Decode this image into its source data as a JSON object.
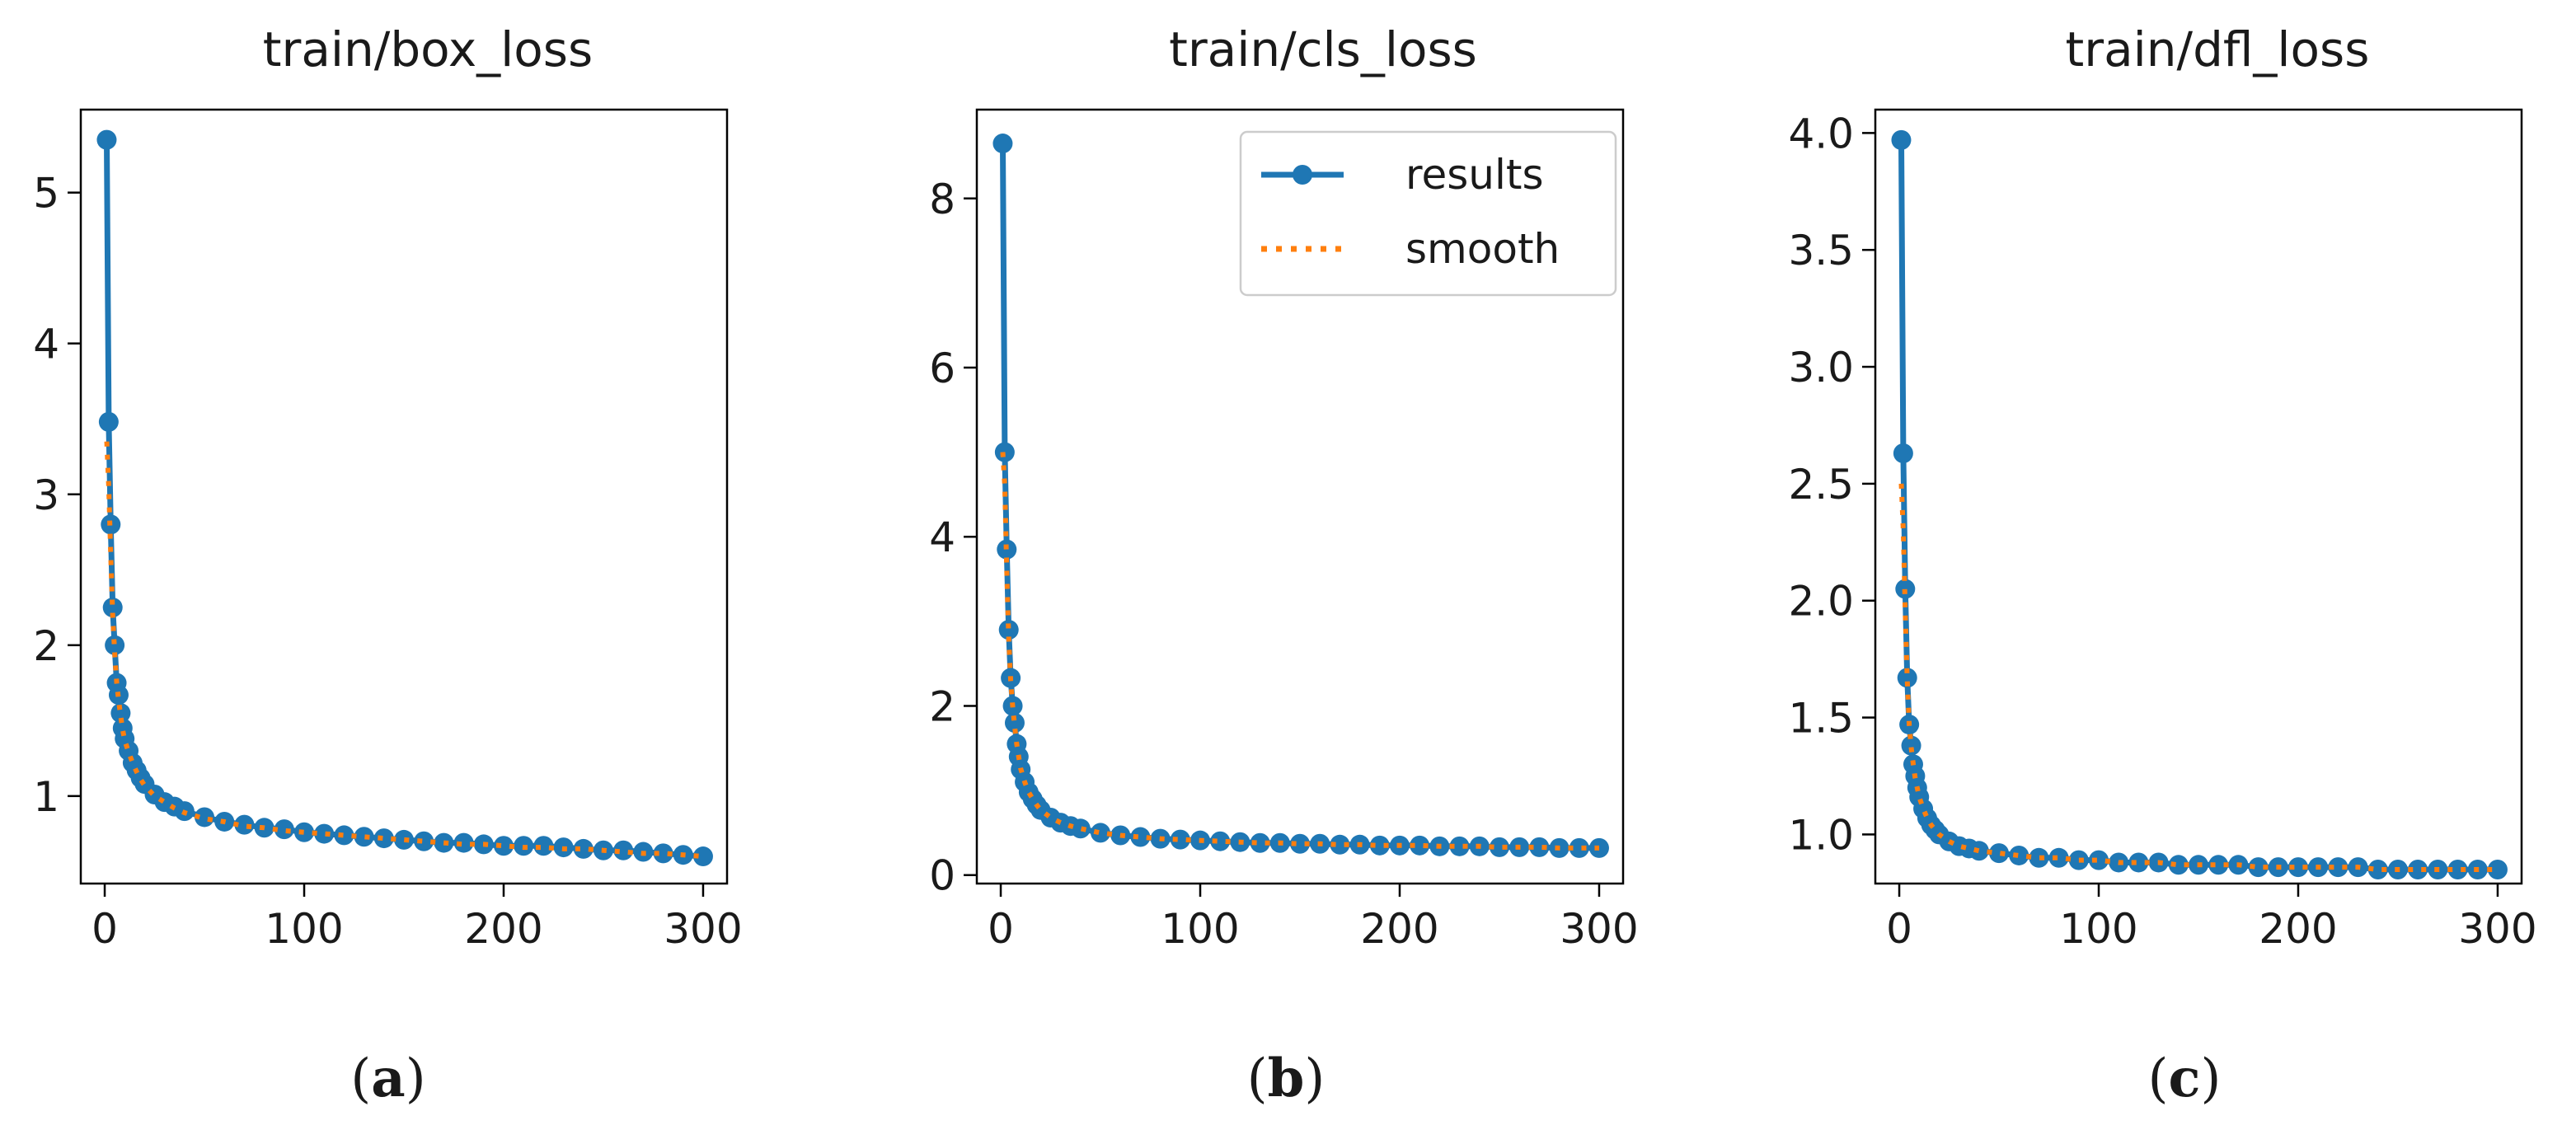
{
  "figure": {
    "captions": [
      "a",
      "b",
      "c"
    ]
  },
  "colors": {
    "results": "#1f77b4",
    "smooth": "#ff7f0e",
    "axis": "#000000",
    "background": "#ffffff"
  },
  "chart_data": [
    {
      "type": "line",
      "title": "train/box_loss",
      "xlabel": "",
      "ylabel": "",
      "xlim": [
        -12,
        312
      ],
      "ylim": [
        0.42,
        5.55
      ],
      "xticks": [
        0,
        100,
        200,
        300
      ],
      "yticks": [
        1,
        2,
        3,
        4,
        5
      ],
      "legend": null,
      "series": [
        {
          "name": "results",
          "style": "solid-marker",
          "x": [
            1,
            2,
            3,
            4,
            5,
            6,
            7,
            8,
            9,
            10,
            12,
            14,
            16,
            18,
            20,
            25,
            30,
            35,
            40,
            50,
            60,
            70,
            80,
            90,
            100,
            110,
            120,
            130,
            140,
            150,
            160,
            170,
            180,
            190,
            200,
            210,
            220,
            230,
            240,
            250,
            260,
            270,
            280,
            290,
            300
          ],
          "y": [
            5.35,
            3.48,
            2.8,
            2.25,
            2.0,
            1.75,
            1.67,
            1.55,
            1.45,
            1.38,
            1.3,
            1.22,
            1.17,
            1.12,
            1.08,
            1.01,
            0.96,
            0.93,
            0.9,
            0.86,
            0.83,
            0.81,
            0.79,
            0.78,
            0.76,
            0.75,
            0.74,
            0.73,
            0.72,
            0.71,
            0.7,
            0.69,
            0.69,
            0.68,
            0.67,
            0.67,
            0.67,
            0.66,
            0.65,
            0.64,
            0.64,
            0.63,
            0.62,
            0.61,
            0.6
          ]
        },
        {
          "name": "smooth",
          "style": "dotted",
          "x": [
            1,
            2,
            3,
            4,
            5,
            6,
            7,
            8,
            9,
            10,
            12,
            14,
            16,
            18,
            20,
            25,
            30,
            35,
            40,
            50,
            60,
            70,
            80,
            90,
            100,
            110,
            120,
            130,
            140,
            150,
            160,
            170,
            180,
            190,
            200,
            210,
            220,
            230,
            240,
            250,
            260,
            270,
            280,
            290,
            300
          ],
          "y": [
            3.35,
            3.05,
            2.6,
            2.2,
            1.95,
            1.75,
            1.63,
            1.53,
            1.44,
            1.37,
            1.29,
            1.22,
            1.16,
            1.11,
            1.07,
            1.0,
            0.96,
            0.92,
            0.89,
            0.85,
            0.83,
            0.8,
            0.79,
            0.77,
            0.76,
            0.75,
            0.74,
            0.73,
            0.72,
            0.71,
            0.7,
            0.69,
            0.68,
            0.68,
            0.67,
            0.66,
            0.66,
            0.65,
            0.65,
            0.64,
            0.63,
            0.62,
            0.62,
            0.61,
            0.6
          ]
        }
      ]
    },
    {
      "type": "line",
      "title": "train/cls_loss",
      "xlabel": "",
      "ylabel": "",
      "xlim": [
        -12,
        312
      ],
      "ylim": [
        -0.1,
        9.05
      ],
      "xticks": [
        0,
        100,
        200,
        300
      ],
      "yticks": [
        0,
        2,
        4,
        6,
        8
      ],
      "legend": {
        "position": "upper right",
        "entries": [
          "results",
          "smooth"
        ]
      },
      "series": [
        {
          "name": "results",
          "style": "solid-marker",
          "x": [
            1,
            2,
            3,
            4,
            5,
            6,
            7,
            8,
            9,
            10,
            12,
            14,
            16,
            18,
            20,
            25,
            30,
            35,
            40,
            50,
            60,
            70,
            80,
            90,
            100,
            110,
            120,
            130,
            140,
            150,
            160,
            170,
            180,
            190,
            200,
            210,
            220,
            230,
            240,
            250,
            260,
            270,
            280,
            290,
            300
          ],
          "y": [
            8.65,
            5.0,
            3.85,
            2.9,
            2.33,
            2.0,
            1.8,
            1.55,
            1.4,
            1.25,
            1.1,
            0.98,
            0.9,
            0.83,
            0.77,
            0.68,
            0.62,
            0.58,
            0.55,
            0.5,
            0.47,
            0.45,
            0.43,
            0.42,
            0.41,
            0.4,
            0.39,
            0.38,
            0.38,
            0.37,
            0.37,
            0.36,
            0.36,
            0.35,
            0.35,
            0.35,
            0.34,
            0.34,
            0.34,
            0.33,
            0.33,
            0.33,
            0.32,
            0.32,
            0.32
          ]
        },
        {
          "name": "smooth",
          "style": "dotted",
          "x": [
            1,
            2,
            3,
            4,
            5,
            6,
            7,
            8,
            9,
            10,
            12,
            14,
            16,
            18,
            20,
            25,
            30,
            35,
            40,
            50,
            60,
            70,
            80,
            90,
            100,
            110,
            120,
            130,
            140,
            150,
            160,
            170,
            180,
            190,
            200,
            210,
            220,
            230,
            240,
            250,
            260,
            270,
            280,
            290,
            300
          ],
          "y": [
            5.0,
            4.6,
            3.6,
            2.8,
            2.3,
            1.98,
            1.75,
            1.55,
            1.4,
            1.26,
            1.1,
            0.98,
            0.9,
            0.83,
            0.77,
            0.68,
            0.62,
            0.58,
            0.55,
            0.5,
            0.47,
            0.45,
            0.43,
            0.42,
            0.41,
            0.4,
            0.39,
            0.38,
            0.38,
            0.37,
            0.37,
            0.36,
            0.36,
            0.35,
            0.35,
            0.35,
            0.34,
            0.34,
            0.34,
            0.33,
            0.33,
            0.33,
            0.32,
            0.32,
            0.32
          ]
        }
      ]
    },
    {
      "type": "line",
      "title": "train/dfl_loss",
      "xlabel": "",
      "ylabel": "",
      "xlim": [
        -12,
        312
      ],
      "ylim": [
        0.79,
        4.1
      ],
      "xticks": [
        0,
        100,
        200,
        300
      ],
      "yticks": [
        "1.0",
        "1.5",
        "2.0",
        "2.5",
        "3.0",
        "3.5",
        "4.0"
      ],
      "legend": null,
      "series": [
        {
          "name": "results",
          "style": "solid-marker",
          "x": [
            1,
            2,
            3,
            4,
            5,
            6,
            7,
            8,
            9,
            10,
            12,
            14,
            16,
            18,
            20,
            25,
            30,
            35,
            40,
            50,
            60,
            70,
            80,
            90,
            100,
            110,
            120,
            130,
            140,
            150,
            160,
            170,
            180,
            190,
            200,
            210,
            220,
            230,
            240,
            250,
            260,
            270,
            280,
            290,
            300
          ],
          "y": [
            3.97,
            2.63,
            2.05,
            1.67,
            1.47,
            1.38,
            1.3,
            1.25,
            1.2,
            1.16,
            1.11,
            1.07,
            1.04,
            1.02,
            1.0,
            0.97,
            0.95,
            0.94,
            0.93,
            0.92,
            0.91,
            0.9,
            0.9,
            0.89,
            0.89,
            0.88,
            0.88,
            0.88,
            0.87,
            0.87,
            0.87,
            0.87,
            0.86,
            0.86,
            0.86,
            0.86,
            0.86,
            0.86,
            0.85,
            0.85,
            0.85,
            0.85,
            0.85,
            0.85,
            0.85
          ]
        },
        {
          "name": "smooth",
          "style": "dotted",
          "x": [
            1,
            2,
            3,
            4,
            5,
            6,
            7,
            8,
            9,
            10,
            12,
            14,
            16,
            18,
            20,
            25,
            30,
            35,
            40,
            50,
            60,
            70,
            80,
            90,
            100,
            110,
            120,
            130,
            140,
            150,
            160,
            170,
            180,
            190,
            200,
            210,
            220,
            230,
            240,
            250,
            260,
            270,
            280,
            290,
            300
          ],
          "y": [
            2.5,
            2.3,
            1.95,
            1.66,
            1.47,
            1.37,
            1.3,
            1.24,
            1.2,
            1.16,
            1.11,
            1.07,
            1.04,
            1.02,
            1.0,
            0.97,
            0.95,
            0.94,
            0.93,
            0.92,
            0.91,
            0.9,
            0.9,
            0.89,
            0.89,
            0.88,
            0.88,
            0.88,
            0.87,
            0.87,
            0.87,
            0.87,
            0.86,
            0.86,
            0.86,
            0.86,
            0.86,
            0.86,
            0.85,
            0.85,
            0.85,
            0.85,
            0.85,
            0.85,
            0.85
          ]
        }
      ]
    }
  ]
}
